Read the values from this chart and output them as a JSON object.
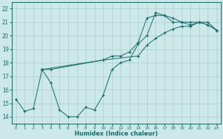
{
  "xlabel": "Humidex (Indice chaleur)",
  "xlim": [
    -0.5,
    23.5
  ],
  "ylim": [
    13.5,
    22.5
  ],
  "xticks": [
    0,
    1,
    2,
    3,
    4,
    5,
    6,
    7,
    8,
    9,
    10,
    11,
    12,
    13,
    14,
    15,
    16,
    17,
    18,
    19,
    20,
    21,
    22,
    23
  ],
  "yticks": [
    14,
    15,
    16,
    17,
    18,
    19,
    20,
    21,
    22
  ],
  "background_color": "#cce8e8",
  "grid_color": "#aacccc",
  "line_color": "#1a6b6b",
  "line1_x": [
    0,
    1,
    2,
    3,
    4,
    5,
    6,
    7,
    8,
    9,
    10,
    11,
    12,
    13,
    14,
    15,
    16,
    17,
    18,
    19,
    20,
    21,
    22,
    23
  ],
  "line1_y": [
    15.3,
    14.4,
    14.6,
    17.5,
    16.5,
    14.5,
    14.0,
    14.0,
    14.7,
    14.5,
    15.6,
    17.5,
    18.0,
    18.2,
    19.4,
    20.0,
    21.7,
    21.5,
    21.0,
    21.0,
    21.0,
    21.0,
    20.8,
    20.4
  ],
  "line2_x": [
    3,
    10,
    14,
    15,
    16,
    17,
    18,
    19,
    20,
    21,
    22,
    23
  ],
  "line2_y": [
    17.5,
    18.2,
    18.5,
    19.3,
    19.8,
    20.2,
    20.5,
    20.7,
    20.7,
    21.0,
    21.0,
    20.4
  ],
  "line3_x": [
    3,
    4,
    10,
    11,
    12,
    13,
    14,
    15,
    16,
    17,
    18,
    19,
    20,
    21,
    22,
    23
  ],
  "line3_y": [
    17.5,
    17.5,
    18.2,
    18.5,
    18.5,
    18.8,
    19.5,
    21.3,
    21.5,
    21.5,
    21.3,
    21.0,
    20.8,
    21.0,
    20.8,
    20.4
  ]
}
